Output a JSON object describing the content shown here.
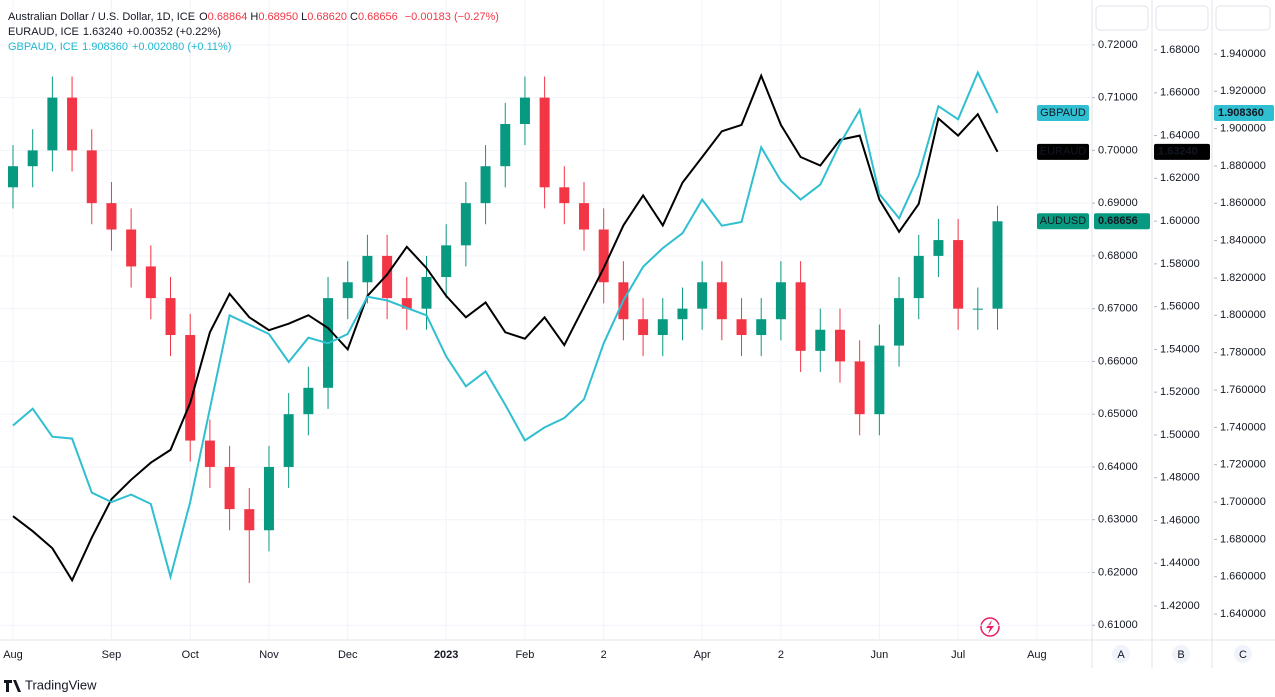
{
  "chart_data": {
    "type": "candlestick",
    "header": {
      "title": "Australian Dollar / U.S. Dollar, 1D, ICE",
      "ohlc": [
        {
          "label": "O",
          "value": "0.68864"
        },
        {
          "label": "H",
          "value": "0.68950"
        },
        {
          "label": "L",
          "value": "0.68620"
        },
        {
          "label": "C",
          "value": "0.68656"
        }
      ],
      "change": "−0.00183 (−0.27%)",
      "rows": [
        {
          "name": "EURAUD, ICE",
          "value": "1.63240",
          "change": "+0.00352 (+0.22%)"
        },
        {
          "name": "GBPAUD, ICE",
          "value": "1.908360",
          "change": "+0.002080 (+0.11%)"
        }
      ]
    },
    "categories": [
      "Aug",
      null,
      null,
      null,
      null,
      "Sep",
      null,
      null,
      null,
      "Oct",
      null,
      null,
      null,
      "Nov",
      null,
      null,
      null,
      "Dec",
      null,
      null,
      null,
      null,
      "2023",
      null,
      null,
      null,
      "Feb",
      null,
      null,
      null,
      "2",
      null,
      null,
      null,
      null,
      "Apr",
      null,
      null,
      null,
      "2",
      null,
      null,
      null,
      null,
      "Jun",
      null,
      null,
      null,
      "Jul",
      null,
      null,
      null,
      "Aug"
    ],
    "candles": {
      "name": "AUDUSD",
      "last_label": "0.68656",
      "up_color": "#089981",
      "down_color": "#f23645",
      "open": [
        0.693,
        0.697,
        0.7,
        0.71,
        0.7,
        0.69,
        0.685,
        0.678,
        0.672,
        0.665,
        0.645,
        0.64,
        0.632,
        0.628,
        0.64,
        0.65,
        0.655,
        0.672,
        0.675,
        0.68,
        0.672,
        0.67,
        0.676,
        0.682,
        0.69,
        0.697,
        0.705,
        0.71,
        0.693,
        0.69,
        0.685,
        0.675,
        0.668,
        0.665,
        0.668,
        0.67,
        0.675,
        0.668,
        0.665,
        0.668,
        0.675,
        0.662,
        0.666,
        0.66,
        0.65,
        0.663,
        0.672,
        0.68,
        0.683,
        0.67,
        0.67,
        null,
        null
      ],
      "high": [
        0.701,
        0.704,
        0.714,
        0.714,
        0.704,
        0.694,
        0.689,
        0.682,
        0.676,
        0.669,
        0.649,
        0.644,
        0.636,
        0.644,
        0.654,
        0.659,
        0.676,
        0.679,
        0.684,
        0.684,
        0.676,
        0.68,
        0.686,
        0.694,
        0.701,
        0.709,
        0.714,
        0.714,
        0.697,
        0.694,
        0.689,
        0.679,
        0.672,
        0.672,
        0.674,
        0.679,
        0.679,
        0.672,
        0.672,
        0.679,
        0.679,
        0.67,
        0.67,
        0.664,
        0.667,
        0.676,
        0.684,
        0.687,
        0.687,
        0.674,
        0.6895,
        null,
        null
      ],
      "low": [
        0.689,
        0.693,
        0.696,
        0.696,
        0.686,
        0.681,
        0.674,
        0.668,
        0.661,
        0.641,
        0.636,
        0.628,
        0.618,
        0.624,
        0.636,
        0.646,
        0.651,
        0.668,
        0.671,
        0.668,
        0.666,
        0.666,
        0.672,
        0.678,
        0.686,
        0.693,
        0.701,
        0.689,
        0.686,
        0.681,
        0.671,
        0.664,
        0.661,
        0.661,
        0.664,
        0.666,
        0.664,
        0.661,
        0.661,
        0.664,
        0.658,
        0.658,
        0.656,
        0.646,
        0.646,
        0.659,
        0.668,
        0.676,
        0.666,
        0.666,
        0.666,
        null,
        null
      ],
      "close": [
        0.697,
        0.7,
        0.71,
        0.7,
        0.69,
        0.685,
        0.678,
        0.672,
        0.665,
        0.645,
        0.64,
        0.632,
        0.628,
        0.64,
        0.65,
        0.655,
        0.672,
        0.675,
        0.68,
        0.672,
        0.67,
        0.676,
        0.682,
        0.69,
        0.697,
        0.705,
        0.71,
        0.693,
        0.69,
        0.685,
        0.675,
        0.668,
        0.665,
        0.668,
        0.67,
        0.675,
        0.668,
        0.665,
        0.668,
        0.675,
        0.662,
        0.666,
        0.66,
        0.65,
        0.663,
        0.672,
        0.68,
        0.683,
        0.67,
        0.67,
        0.68656,
        null,
        null
      ]
    },
    "series": [
      {
        "name": "EURAUD",
        "last_label": "1.63240",
        "color": "#000000",
        "axis": "y2",
        "values": [
          1.462,
          1.455,
          1.447,
          1.432,
          1.452,
          1.47,
          1.479,
          1.487,
          1.493,
          1.515,
          1.548,
          1.566,
          1.555,
          1.549,
          1.552,
          1.556,
          1.55,
          1.54,
          1.565,
          1.575,
          1.588,
          1.578,
          1.565,
          1.555,
          1.562,
          1.548,
          1.545,
          1.555,
          1.542,
          1.56,
          1.578,
          1.598,
          1.612,
          1.598,
          1.618,
          1.63,
          1.642,
          1.645,
          1.668,
          1.645,
          1.63,
          1.626,
          1.638,
          1.64,
          1.61,
          1.595,
          1.608,
          1.648,
          1.64,
          1.65,
          1.6324,
          null,
          null
        ]
      },
      {
        "name": "GBPAUD",
        "last_label": "1.908360",
        "color": "#2fbfd1",
        "axis": "y3",
        "values": [
          1.741,
          1.75,
          1.735,
          1.734,
          1.705,
          1.7,
          1.704,
          1.699,
          1.66,
          1.7,
          1.75,
          1.8,
          1.795,
          1.79,
          1.775,
          1.788,
          1.785,
          1.79,
          1.81,
          1.808,
          1.804,
          1.8,
          1.778,
          1.762,
          1.77,
          1.752,
          1.733,
          1.74,
          1.745,
          1.755,
          1.785,
          1.808,
          1.826,
          1.836,
          1.844,
          1.862,
          1.848,
          1.85,
          1.89,
          1.872,
          1.862,
          1.87,
          1.892,
          1.91,
          1.865,
          1.852,
          1.875,
          1.912,
          1.905,
          1.93,
          1.90836,
          null,
          null
        ]
      }
    ],
    "ylim": [
      0.6072,
      0.7285
    ],
    "yticks": [
      {
        "value": 0.61,
        "label": "0.61000"
      },
      {
        "value": 0.62,
        "label": "0.62000"
      },
      {
        "value": 0.63,
        "label": "0.63000"
      },
      {
        "value": 0.64,
        "label": "0.64000"
      },
      {
        "value": 0.65,
        "label": "0.65000"
      },
      {
        "value": 0.66,
        "label": "0.66000"
      },
      {
        "value": 0.67,
        "label": "0.67000"
      },
      {
        "value": 0.68,
        "label": "0.68000"
      },
      {
        "value": 0.69,
        "label": "0.69000"
      },
      {
        "value": 0.7,
        "label": "0.70000"
      },
      {
        "value": 0.71,
        "label": "0.71000"
      },
      {
        "value": 0.72,
        "label": "0.72000"
      }
    ],
    "y2lim": [
      1.4041,
      1.7034
    ],
    "y2ticks": [
      {
        "value": 1.42,
        "label": "1.42000"
      },
      {
        "value": 1.44,
        "label": "1.44000"
      },
      {
        "value": 1.46,
        "label": "1.46000"
      },
      {
        "value": 1.48,
        "label": "1.48000"
      },
      {
        "value": 1.5,
        "label": "1.50000"
      },
      {
        "value": 1.52,
        "label": "1.52000"
      },
      {
        "value": 1.54,
        "label": "1.54000"
      },
      {
        "value": 1.56,
        "label": "1.56000"
      },
      {
        "value": 1.58,
        "label": "1.58000"
      },
      {
        "value": 1.6,
        "label": "1.60000"
      },
      {
        "value": 1.62,
        "label": "1.62000"
      },
      {
        "value": 1.64,
        "label": "1.64000"
      },
      {
        "value": 1.66,
        "label": "1.66000"
      },
      {
        "value": 1.68,
        "label": "1.68000"
      }
    ],
    "y3lim": [
      1.6261,
      1.9689
    ],
    "y3ticks": [
      {
        "value": 1.64,
        "label": "1.640000"
      },
      {
        "value": 1.66,
        "label": "1.660000"
      },
      {
        "value": 1.68,
        "label": "1.680000"
      },
      {
        "value": 1.7,
        "label": "1.700000"
      },
      {
        "value": 1.72,
        "label": "1.720000"
      },
      {
        "value": 1.74,
        "label": "1.740000"
      },
      {
        "value": 1.76,
        "label": "1.760000"
      },
      {
        "value": 1.78,
        "label": "1.780000"
      },
      {
        "value": 1.8,
        "label": "1.800000"
      },
      {
        "value": 1.82,
        "label": "1.820000"
      },
      {
        "value": 1.84,
        "label": "1.840000"
      },
      {
        "value": 1.86,
        "label": "1.860000"
      },
      {
        "value": 1.88,
        "label": "1.880000"
      },
      {
        "value": 1.9,
        "label": "1.900000"
      },
      {
        "value": 1.92,
        "label": "1.920000"
      },
      {
        "value": 1.94,
        "label": "1.940000"
      }
    ],
    "grid": true,
    "axis_names": [
      "A",
      "B",
      "C"
    ],
    "brand": "TradingView"
  }
}
